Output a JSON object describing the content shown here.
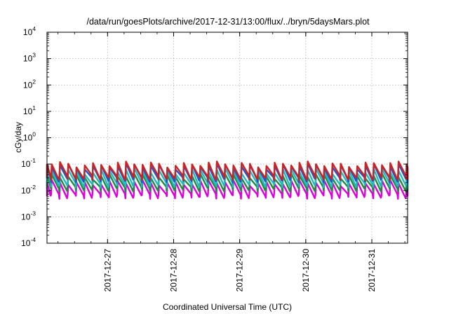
{
  "chart_data": {
    "type": "line",
    "title": "/data/run/goesPlots/archive/2017-12-31/13:00/flux/../bryn/5daysMars.plot",
    "xlabel": "Coordinated Universal Time (UTC)",
    "ylabel": "cGy/day",
    "x_range": [
      "2017-12-26 02:00",
      "2017-12-31 13:00"
    ],
    "ylim": [
      0.0001,
      10000
    ],
    "y_scale": "log",
    "grid": true,
    "x_ticks": [
      {
        "date": "2017-12-27 00:00",
        "label": "2017-12-27"
      },
      {
        "date": "2017-12-28 00:00",
        "label": "2017-12-28"
      },
      {
        "date": "2017-12-29 00:00",
        "label": "2017-12-29"
      },
      {
        "date": "2017-12-30 00:00",
        "label": "2017-12-30"
      },
      {
        "date": "2017-12-31 00:00",
        "label": "2017-12-31"
      }
    ],
    "y_ticks": [
      {
        "value": 0.0001,
        "base": "10",
        "exp": "-4"
      },
      {
        "value": 0.001,
        "base": "10",
        "exp": "-3"
      },
      {
        "value": 0.01,
        "base": "10",
        "exp": "-2"
      },
      {
        "value": 0.1,
        "base": "10",
        "exp": "-1"
      },
      {
        "value": 1,
        "base": "10",
        "exp": "0"
      },
      {
        "value": 10,
        "base": "10",
        "exp": "1"
      },
      {
        "value": 100,
        "base": "10",
        "exp": "2"
      },
      {
        "value": 1000,
        "base": "10",
        "exp": "3"
      },
      {
        "value": 10000,
        "base": "10",
        "exp": "4"
      }
    ],
    "sawtooth_period_hours": 3,
    "series": [
      {
        "color": "#cc2222",
        "peak": 0.1,
        "trough": 0.03
      },
      {
        "color": "#2255cc",
        "peak": 0.085,
        "trough": 0.025
      },
      {
        "color": "#22bbbb",
        "peak": 0.055,
        "trough": 0.016
      },
      {
        "color": "#228844",
        "peak": 0.035,
        "trough": 0.011
      },
      {
        "color": "#dd00dd",
        "peak": 0.02,
        "trough": 0.006
      }
    ]
  }
}
